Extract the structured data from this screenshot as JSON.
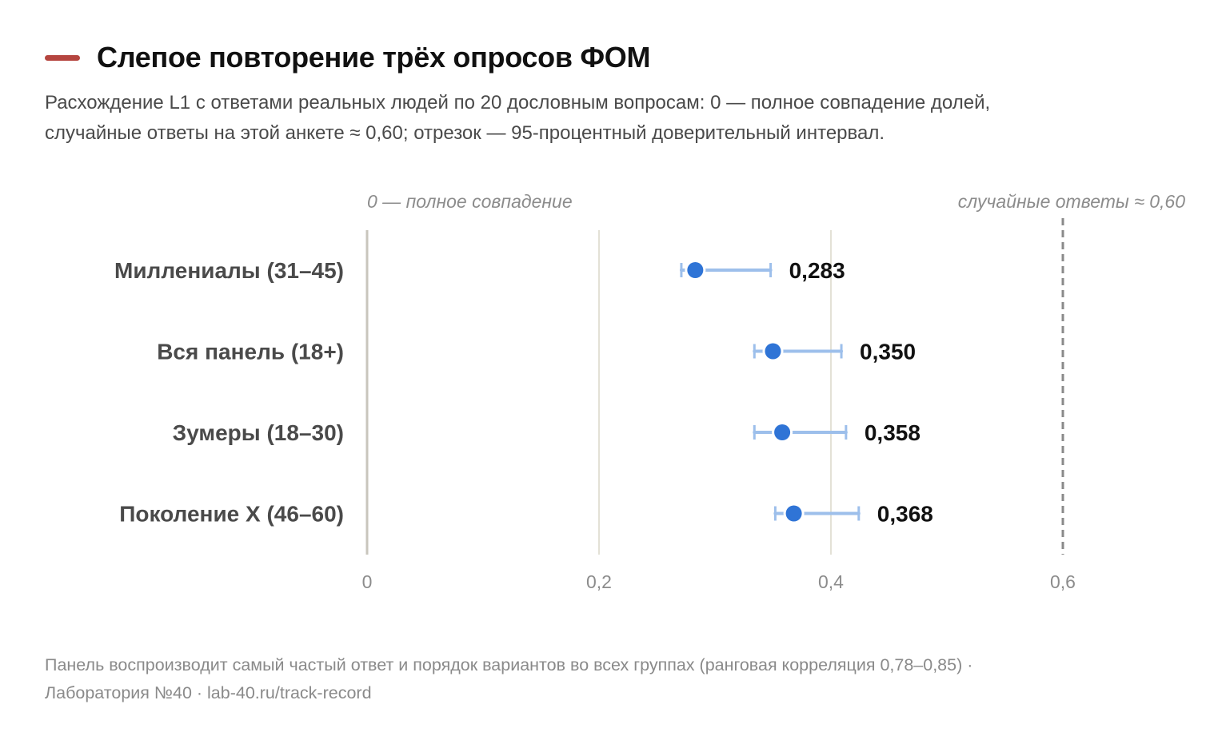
{
  "header": {
    "title": "Слепое повторение трёх опросов ФОМ",
    "subtitle_line1": "Расхождение L1 с ответами реальных людей по 20 дословным вопросам: 0 — полное совпадение долей,",
    "subtitle_line2": "случайные ответы на этой анкете ≈ 0,60; отрезок — 95-процентный доверительный интервал.",
    "accent_color": "#b5453f"
  },
  "chart_data": {
    "type": "scatter",
    "orientation": "horizontal",
    "categories": [
      "Миллениалы (31–45)",
      "Вся панель (18+)",
      "Зумеры (18–30)",
      "Поколение X (46–60)"
    ],
    "values": [
      0.283,
      0.35,
      0.358,
      0.368
    ],
    "value_labels": [
      "0,283",
      "0,350",
      "0,358",
      "0,368"
    ],
    "ci_low": [
      0.271,
      0.334,
      0.334,
      0.352
    ],
    "ci_high": [
      0.348,
      0.409,
      0.413,
      0.424
    ],
    "xlim": [
      0,
      0.6
    ],
    "xticks": [
      0,
      0.2,
      0.4,
      0.6
    ],
    "xtick_labels": [
      "0",
      "0,2",
      "0,4",
      "0,6"
    ],
    "annotations": {
      "left": "0 — полное совпадение",
      "right": "случайные ответы ≈ 0,60"
    },
    "reference_line": 0.6,
    "grid": true,
    "point_color": "#2f74d6",
    "ci_color": "#9dbfeb"
  },
  "footer": {
    "line1": "Панель воспроизводит самый частый ответ и порядок вариантов во всех группах (ранговая корреляция 0,78–0,85) ·",
    "line2": "Лаборатория №40 · lab-40.ru/track-record"
  }
}
